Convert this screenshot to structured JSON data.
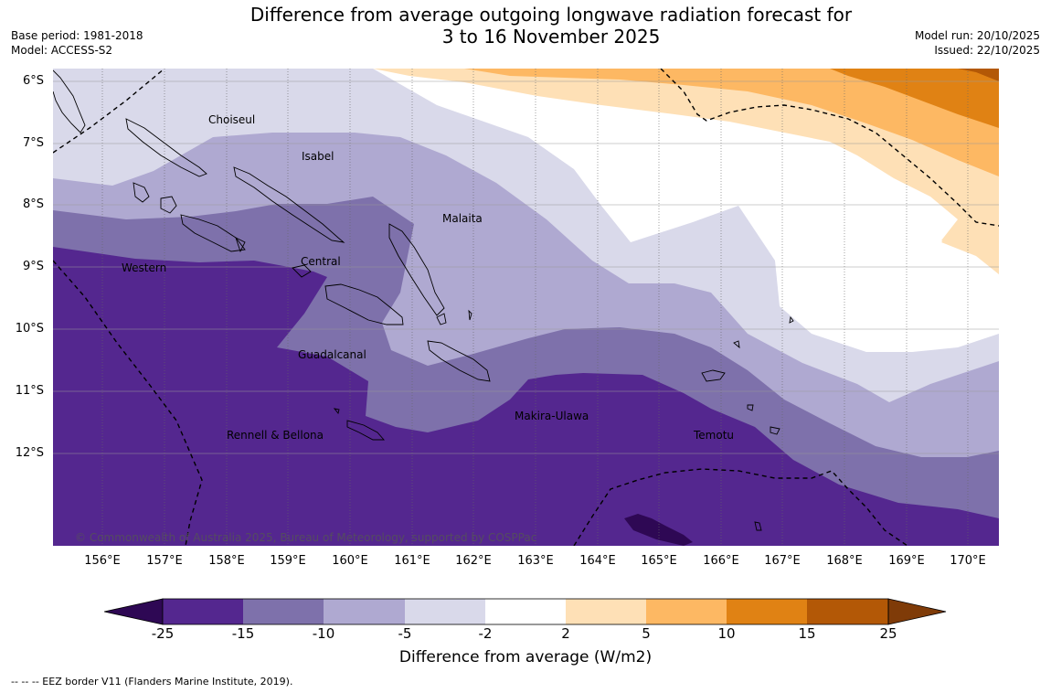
{
  "title": {
    "line1": "Difference from average outgoing longwave radiation forecast for",
    "line2": "3 to 16 November 2025"
  },
  "meta_left": {
    "base_period": "Base period: 1981-2018",
    "model": "Model: ACCESS-S2"
  },
  "meta_right": {
    "model_run": "Model run: 20/10/2025",
    "issued": "Issued: 22/10/2025"
  },
  "lat_labels": [
    "6°S",
    "7°S",
    "8°S",
    "9°S",
    "10°S",
    "11°S",
    "12°S"
  ],
  "lon_labels": [
    "156°E",
    "157°E",
    "158°E",
    "159°E",
    "160°E",
    "161°E",
    "162°E",
    "163°E",
    "164°E",
    "165°E",
    "166°E",
    "167°E",
    "168°E",
    "169°E",
    "170°E"
  ],
  "places": {
    "choiseul": "Choiseul",
    "isabel": "Isabel",
    "malaita": "Malaita",
    "central": "Central",
    "western": "Western",
    "guadalcanal": "Guadalcanal",
    "makira": "Makira-Ulawa",
    "rennell": "Rennell & Bellona",
    "temotu": "Temotu"
  },
  "copyright": "© Commonwealth of Australia 2025, Bureau of Meteorology, supported by COSPPac",
  "colorbar": {
    "ticks": [
      "-25",
      "-15",
      "-10",
      "-5",
      "-2",
      "2",
      "5",
      "10",
      "15",
      "25"
    ],
    "colors": [
      "#2e0854",
      "#54278f",
      "#7e71ab",
      "#afa9d1",
      "#d9d9ea",
      "#ffffff",
      "#fee0b6",
      "#fdb863",
      "#e08214",
      "#b35806",
      "#7f3b08"
    ],
    "label": "Difference from average (W/m2)"
  },
  "footnote": "--  --  -- EEZ border V11 (Flanders Marine Institute, 2019)."
}
